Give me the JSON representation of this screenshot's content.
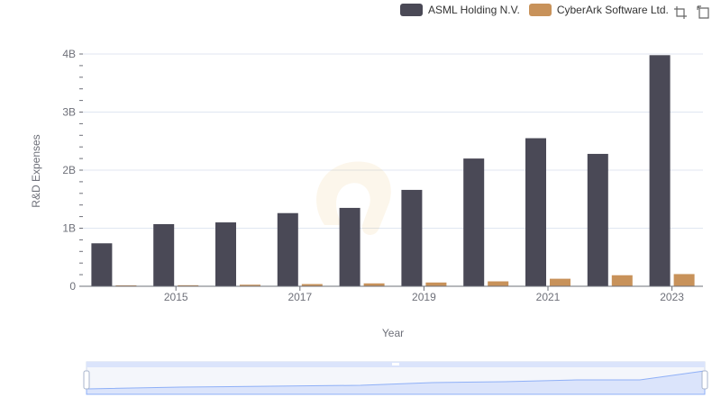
{
  "chart_data": {
    "type": "bar",
    "categories": [
      "2014",
      "2015",
      "2016",
      "2017",
      "2018",
      "2019",
      "2020",
      "2021",
      "2022",
      "2023"
    ],
    "x_tick_labels": [
      "2015",
      "2017",
      "2019",
      "2021",
      "2023"
    ],
    "series": [
      {
        "name": "ASML Holding N.V.",
        "color": "#4a4956",
        "values": [
          0.74,
          1.07,
          1.1,
          1.26,
          1.35,
          1.66,
          2.2,
          2.55,
          2.28,
          3.98
        ]
      },
      {
        "name": "CyberArk Software Ltd.",
        "color": "#c8925a",
        "values": [
          0.01,
          0.018,
          0.027,
          0.038,
          0.05,
          0.065,
          0.085,
          0.13,
          0.19,
          0.21
        ]
      }
    ],
    "y_unit": "billions",
    "y_tick_labels": [
      "0",
      "1B",
      "2B",
      "3B",
      "4B"
    ],
    "ylim": [
      0,
      4
    ],
    "xlabel": "Year",
    "ylabel": "R&D Expenses",
    "legend_position": "top-right"
  },
  "colors": {
    "axis": "#6e7079",
    "grid": "#e0e6f1",
    "zoom_fill": "#dbe4fb",
    "zoom_line": "#8fb0f7"
  }
}
